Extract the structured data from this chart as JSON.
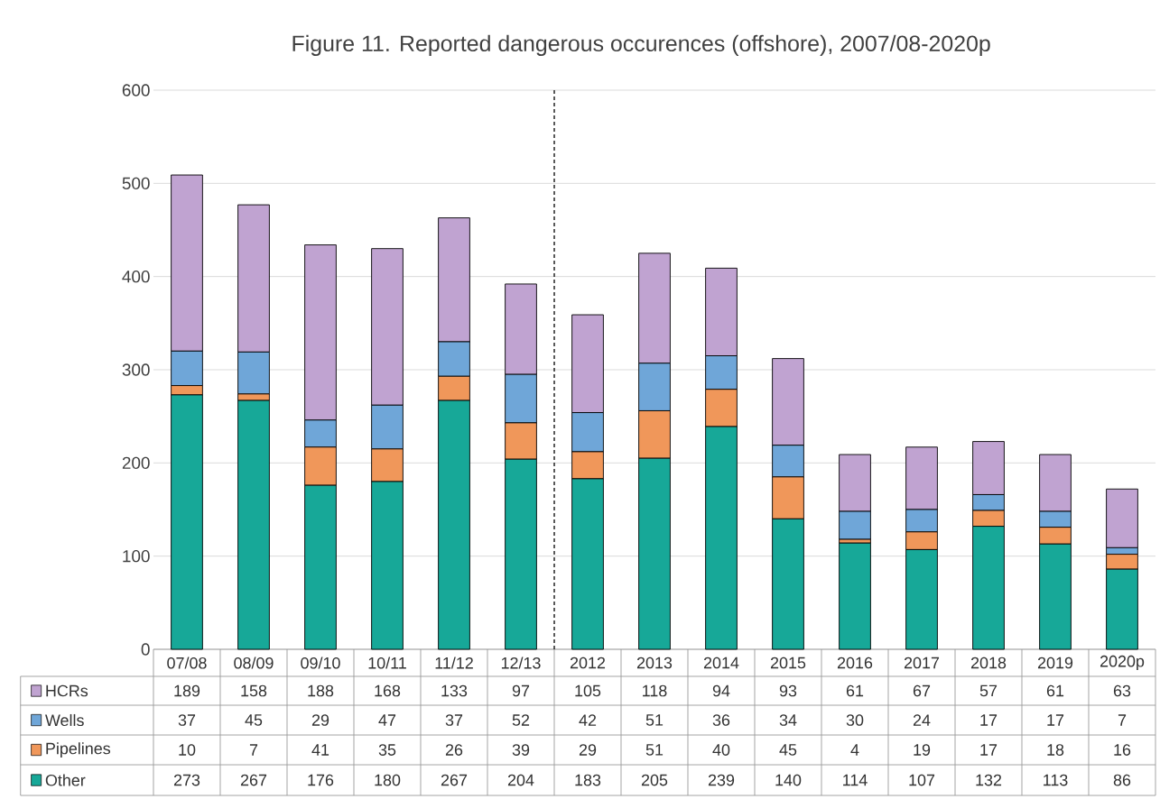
{
  "chart_data": {
    "type": "bar",
    "stacked": true,
    "title": "Figure 11. Reported dangerous occurences (offshore), 2007/08-2020p",
    "categories": [
      "07/08",
      "08/09",
      "09/10",
      "10/11",
      "11/12",
      "12/13",
      "2012",
      "2013",
      "2014",
      "2015",
      "2016",
      "2017",
      "2018",
      "2019",
      "2020p"
    ],
    "series": [
      {
        "name": "Other",
        "color": "#17a898",
        "values": [
          273,
          267,
          176,
          180,
          267,
          204,
          183,
          205,
          239,
          140,
          114,
          107,
          132,
          113,
          86
        ]
      },
      {
        "name": "Pipelines",
        "color": "#f0975a",
        "values": [
          10,
          7,
          41,
          35,
          26,
          39,
          29,
          51,
          40,
          45,
          4,
          19,
          17,
          18,
          16
        ]
      },
      {
        "name": "Wells",
        "color": "#6fa6d8",
        "values": [
          37,
          45,
          29,
          47,
          37,
          52,
          42,
          51,
          36,
          34,
          30,
          24,
          17,
          17,
          7
        ]
      },
      {
        "name": "HCRs",
        "color": "#c0a3d1",
        "values": [
          189,
          158,
          188,
          168,
          133,
          97,
          105,
          118,
          94,
          93,
          61,
          67,
          57,
          61,
          63
        ]
      }
    ],
    "ylim": [
      0,
      600
    ],
    "yticks": [
      0,
      100,
      200,
      300,
      400,
      500,
      600
    ],
    "grid": "y",
    "data_labels": true,
    "legend": "bottom left"
  }
}
